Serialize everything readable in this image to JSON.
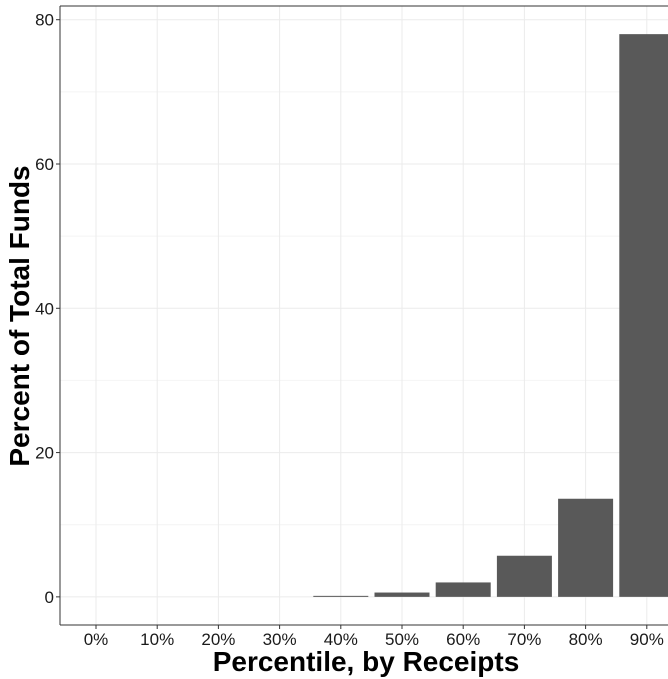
{
  "chart_data": {
    "type": "bar",
    "categories": [
      "0%",
      "10%",
      "20%",
      "30%",
      "40%",
      "50%",
      "60%",
      "70%",
      "80%",
      "90%"
    ],
    "values": [
      0,
      0,
      0,
      0,
      0.1,
      0.6,
      2.0,
      5.7,
      13.6,
      78.0
    ],
    "xlabel": "Percentile, by Receipts",
    "ylabel": "Percent of Total Funds",
    "yticks": [
      "0",
      "20",
      "40",
      "60",
      "80"
    ],
    "ylim": [
      -3.9,
      81.9
    ],
    "grid": true,
    "bar_color": "#595959",
    "grid_color": "#ebebeb"
  }
}
